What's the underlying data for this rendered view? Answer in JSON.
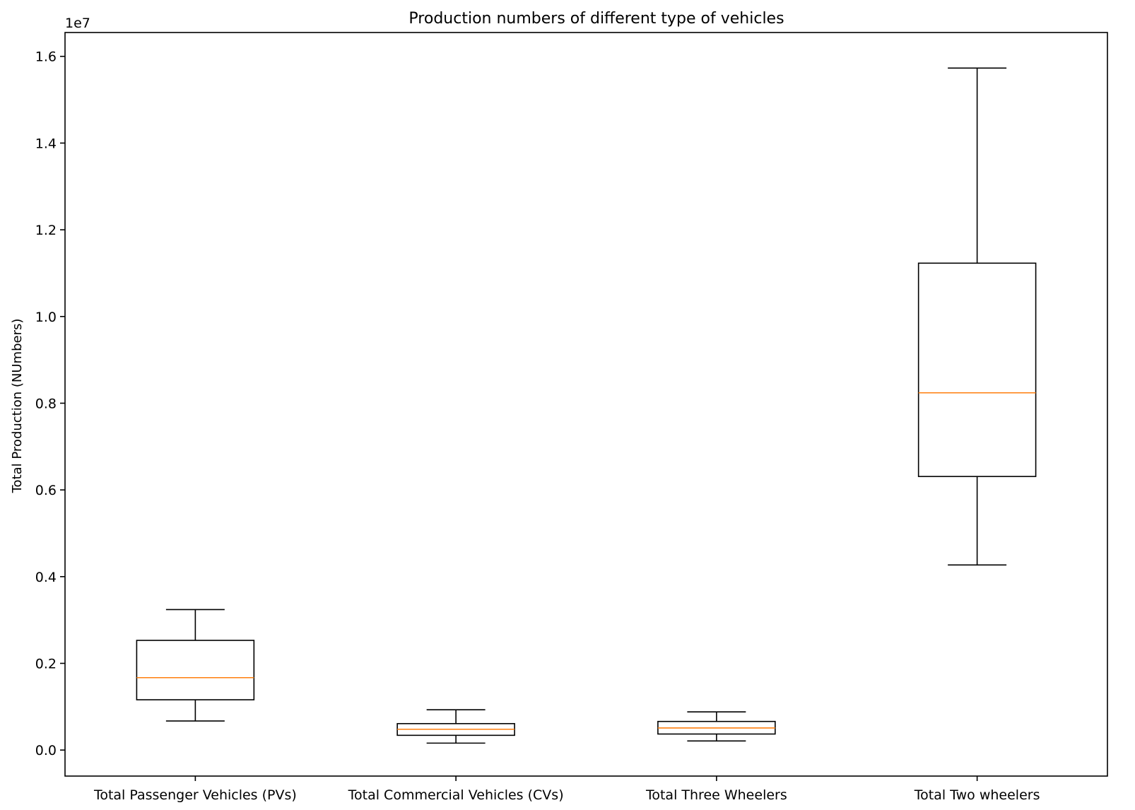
{
  "chart_data": {
    "type": "box",
    "title": "Production numbers of different type of vehicles",
    "xlabel": "",
    "ylabel": "Total Production (NUmbers)",
    "y_offset_label": "1e7",
    "y_scale": 10000000,
    "ylim": [
      -600000,
      16550000
    ],
    "yticks": [
      0,
      2000000,
      4000000,
      6000000,
      8000000,
      10000000,
      12000000,
      14000000,
      16000000
    ],
    "ytick_labels": [
      "0.0",
      "0.2",
      "0.4",
      "0.6",
      "0.8",
      "1.0",
      "1.2",
      "1.4",
      "1.6"
    ],
    "categories": [
      "Total Passenger Vehicles (PVs)",
      "Total Commercial Vehicles (CVs)",
      "Total Three Wheelers",
      "Total Two wheelers"
    ],
    "boxes": [
      {
        "whisker_low": 670000,
        "q1": 1160000,
        "median": 1670000,
        "q3": 2530000,
        "whisker_high": 3240000
      },
      {
        "whisker_low": 160000,
        "q1": 340000,
        "median": 480000,
        "q3": 610000,
        "whisker_high": 930000
      },
      {
        "whisker_low": 210000,
        "q1": 370000,
        "median": 510000,
        "q3": 660000,
        "whisker_high": 880000
      },
      {
        "whisker_low": 4270000,
        "q1": 6310000,
        "median": 8240000,
        "q3": 11230000,
        "whisker_high": 15730000
      }
    ],
    "grid": false,
    "legend": "none",
    "colors": {
      "box": "#000000",
      "median": "#ff7f0e",
      "axes": "#000000"
    }
  }
}
